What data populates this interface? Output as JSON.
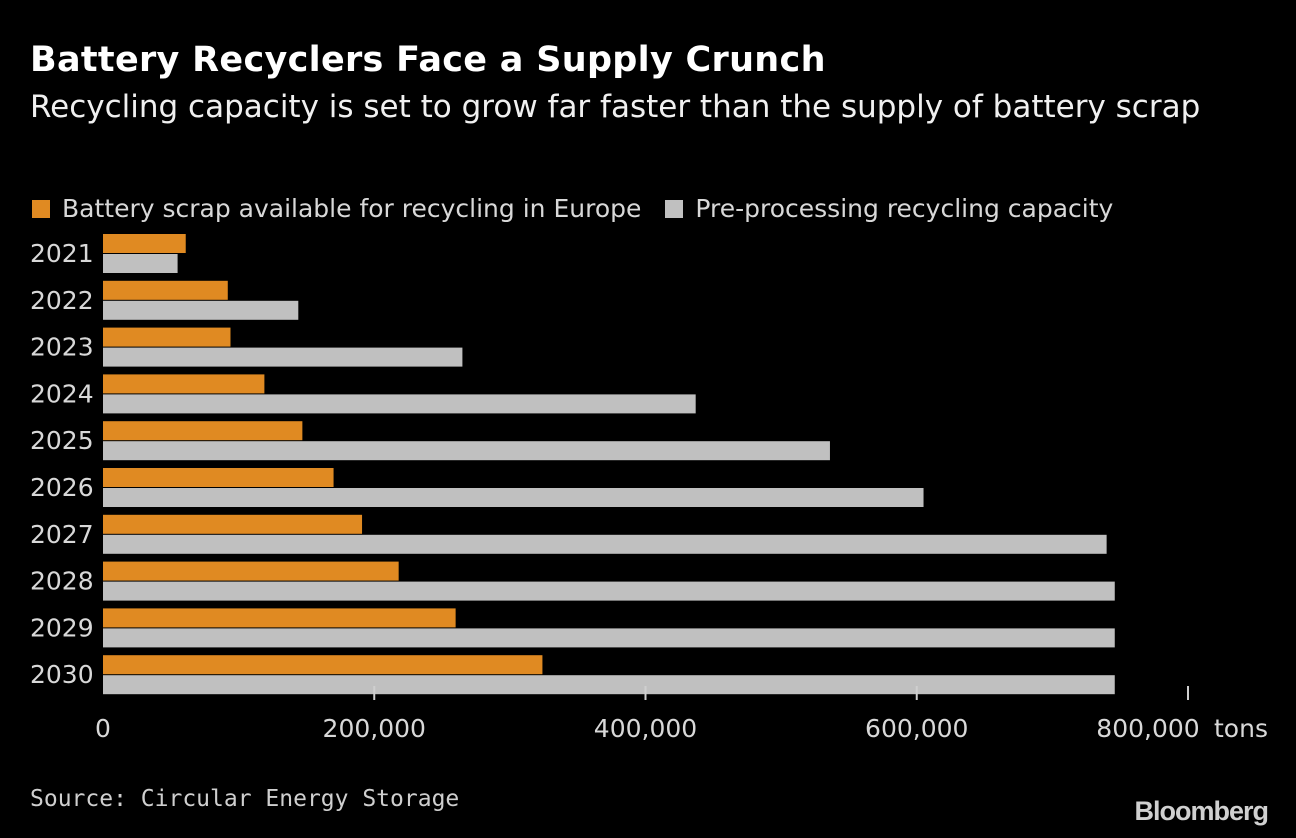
{
  "chart_data": {
    "type": "bar",
    "orientation": "horizontal",
    "title": "Battery Recyclers Face a Supply Crunch",
    "subtitle": "Recycling capacity is set to grow far faster than the supply of battery scrap",
    "categories": [
      "2021",
      "2022",
      "2023",
      "2024",
      "2025",
      "2026",
      "2027",
      "2028",
      "2029",
      "2030"
    ],
    "series": [
      {
        "name": "Battery scrap available for recycling in Europe",
        "color": "#e08a22",
        "values": [
          61000,
          92000,
          94000,
          119000,
          147000,
          170000,
          191000,
          218000,
          260000,
          324000
        ]
      },
      {
        "name": "Pre-processing recycling capacity",
        "color": "#c0c0c0",
        "values": [
          55000,
          144000,
          265000,
          437000,
          536000,
          605000,
          740000,
          746000,
          746000,
          746000
        ]
      }
    ],
    "xlim": [
      0,
      800000
    ],
    "xticks": [
      "0",
      "200,000",
      "400,000",
      "600,000",
      "800,000"
    ],
    "xtick_values": [
      0,
      200000,
      400000,
      600000,
      800000
    ],
    "x_unit": "tons",
    "legend_position": "top-left",
    "grid": false
  },
  "source": "Source: Circular Energy Storage",
  "logo": "Bloomberg"
}
